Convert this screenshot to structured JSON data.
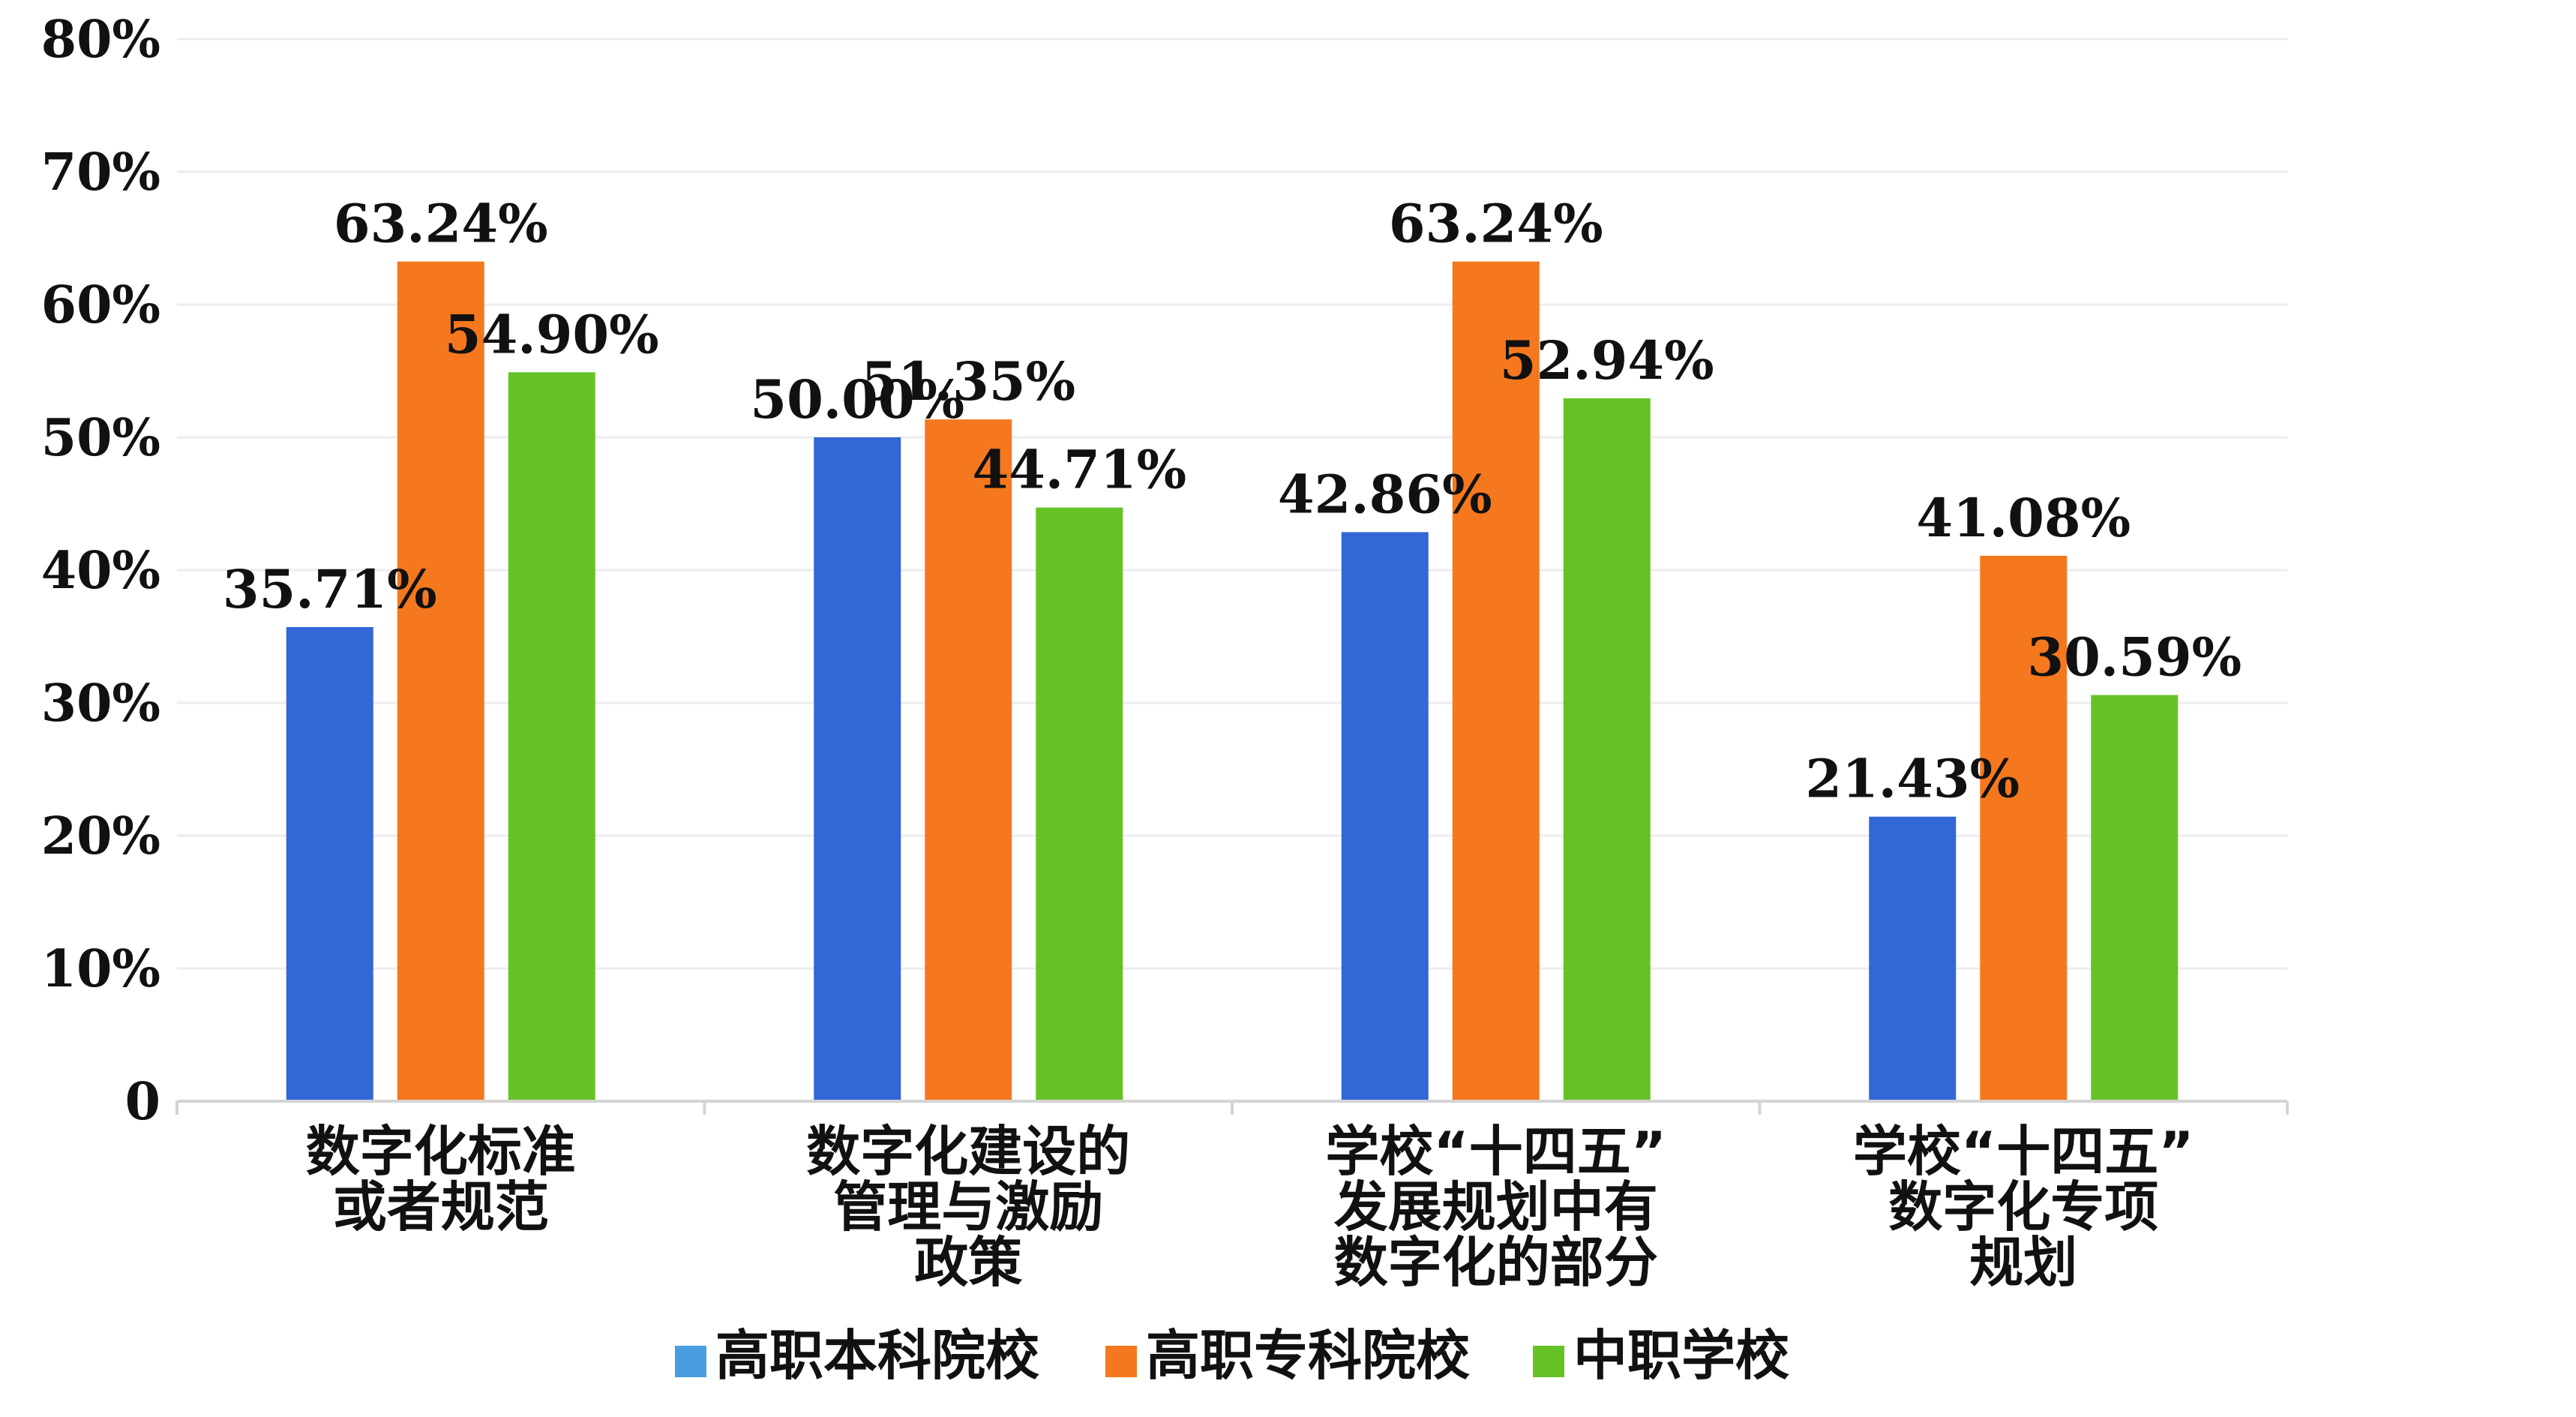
{
  "chart_data": {
    "type": "bar",
    "categories": [
      [
        "数字化标准",
        "或者规范"
      ],
      [
        "数字化建设的",
        "管理与激励",
        "政策"
      ],
      [
        "学校“十四五”",
        "发展规划中有",
        "数字化的部分"
      ],
      [
        "学校“十四五”",
        "数字化专项",
        "规划"
      ]
    ],
    "series": [
      {
        "name": "高职本科院校",
        "color": "#3366d6",
        "values": [
          35.71,
          50.0,
          42.86,
          21.43
        ]
      },
      {
        "name": "高职专科院校",
        "color": "#f5781e",
        "values": [
          63.24,
          51.35,
          63.24,
          41.08
        ]
      },
      {
        "name": "中职学校",
        "color": "#66c226",
        "values": [
          54.9,
          44.71,
          52.94,
          30.59
        ]
      }
    ],
    "data_labels": [
      [
        "35.71%",
        "50.00%",
        "42.86%",
        "21.43%"
      ],
      [
        "63.24%",
        "51.35%",
        "63.24%",
        "41.08%"
      ],
      [
        "54.90%",
        "44.71%",
        "52.94%",
        "30.59%"
      ]
    ],
    "yticks": [
      0,
      10,
      20,
      30,
      40,
      50,
      60,
      70,
      80
    ],
    "ytick_labels": [
      "0",
      "10%",
      "20%",
      "30%",
      "40%",
      "50%",
      "60%",
      "70%",
      "80%"
    ],
    "ylim": [
      0,
      80
    ],
    "grid": true,
    "legend_position": "bottom",
    "legend_swatch_color": "#4a9de0"
  }
}
